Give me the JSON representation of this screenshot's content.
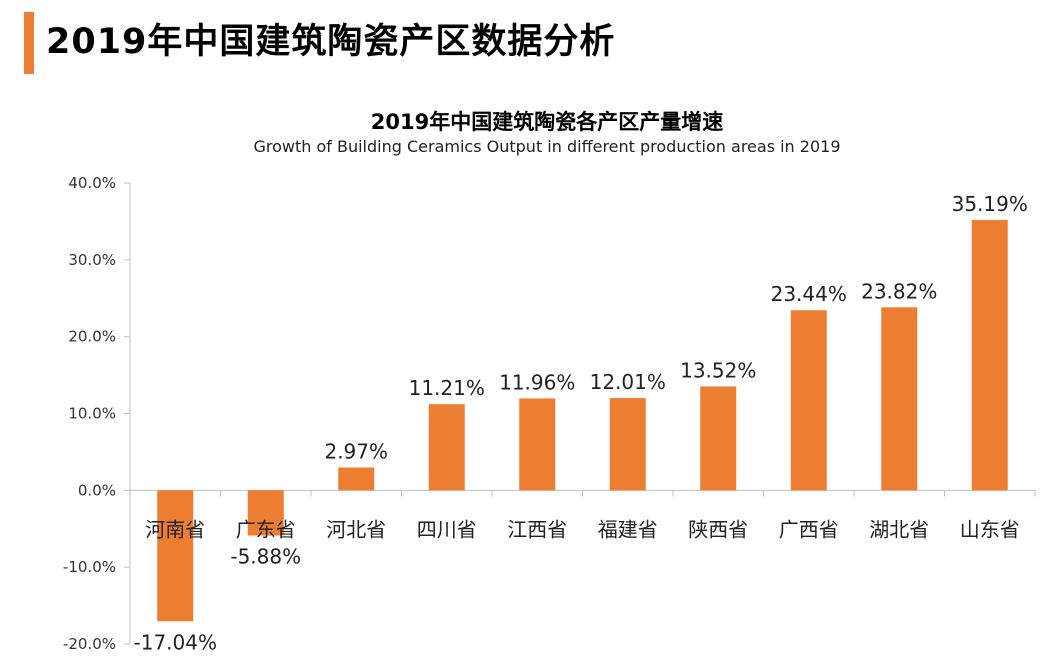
{
  "page": {
    "title": "2019年中国建筑陶瓷产区数据分析"
  },
  "colors": {
    "accent": "#ED7D31",
    "bar": "#ED7D31",
    "axis": "#BFBFBF"
  },
  "chart_data": {
    "type": "bar",
    "title": "2019年中国建筑陶瓷各产区产量增速",
    "subtitle": "Growth of  Building Ceramics Output in different production areas in 2019",
    "categories": [
      "河南省",
      "广东省",
      "河北省",
      "四川省",
      "江西省",
      "福建省",
      "陕西省",
      "广西省",
      "湖北省",
      "山东省"
    ],
    "values": [
      -17.04,
      -5.88,
      2.97,
      11.21,
      11.96,
      12.01,
      13.52,
      23.44,
      23.82,
      35.19
    ],
    "data_labels": [
      "-17.04%",
      "-5.88%",
      "2.97%",
      "11.21%",
      "11.96%",
      "12.01%",
      "13.52%",
      "23.44%",
      "23.82%",
      "35.19%"
    ],
    "y_ticks": [
      40,
      30,
      20,
      10,
      0,
      -10,
      -20
    ],
    "y_tick_labels": [
      "40.0%",
      "30.0%",
      "20.0%",
      "10.0%",
      "0.0%",
      "-10.0%",
      "-20.0%"
    ],
    "ylim": [
      -20,
      40
    ],
    "grid": false,
    "legend": "none",
    "xlabel": "",
    "ylabel": ""
  }
}
